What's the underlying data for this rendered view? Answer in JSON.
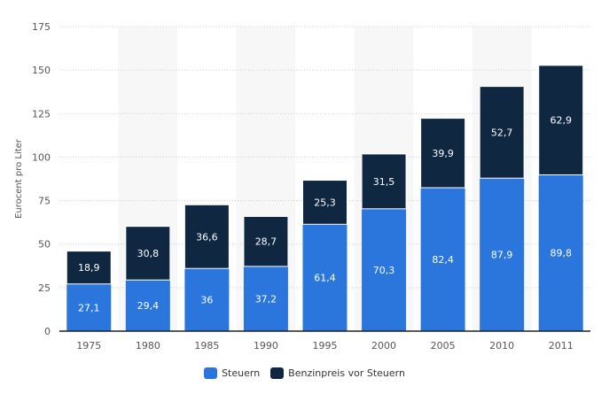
{
  "chart_data": {
    "type": "bar",
    "stacked": true,
    "title": "",
    "xlabel": "",
    "ylabel": "Eurocent pro Liter",
    "ylim": [
      0,
      175
    ],
    "yticks": [
      0,
      25,
      50,
      75,
      100,
      125,
      150,
      175
    ],
    "categories": [
      "1975",
      "1980",
      "1985",
      "1990",
      "1995",
      "2000",
      "2005",
      "2010",
      "2011"
    ],
    "series": [
      {
        "name": "Steuern",
        "color": "#2a76dd",
        "values": [
          27.1,
          29.4,
          36,
          37.2,
          61.4,
          70.3,
          82.4,
          87.9,
          89.8
        ],
        "labels": [
          "27,1",
          "29,4",
          "36",
          "37,2",
          "61,4",
          "70,3",
          "82,4",
          "87,9",
          "89,8"
        ]
      },
      {
        "name": "Benzinpreis vor Steuern",
        "color": "#0f2741",
        "values": [
          18.9,
          30.8,
          36.6,
          28.7,
          25.3,
          31.5,
          39.9,
          52.7,
          62.9
        ],
        "labels": [
          "18,9",
          "30,8",
          "36,6",
          "28,7",
          "25,3",
          "31,5",
          "39,9",
          "52,7",
          "62,9"
        ]
      }
    ],
    "grid": true,
    "legend": "bottom-center"
  }
}
